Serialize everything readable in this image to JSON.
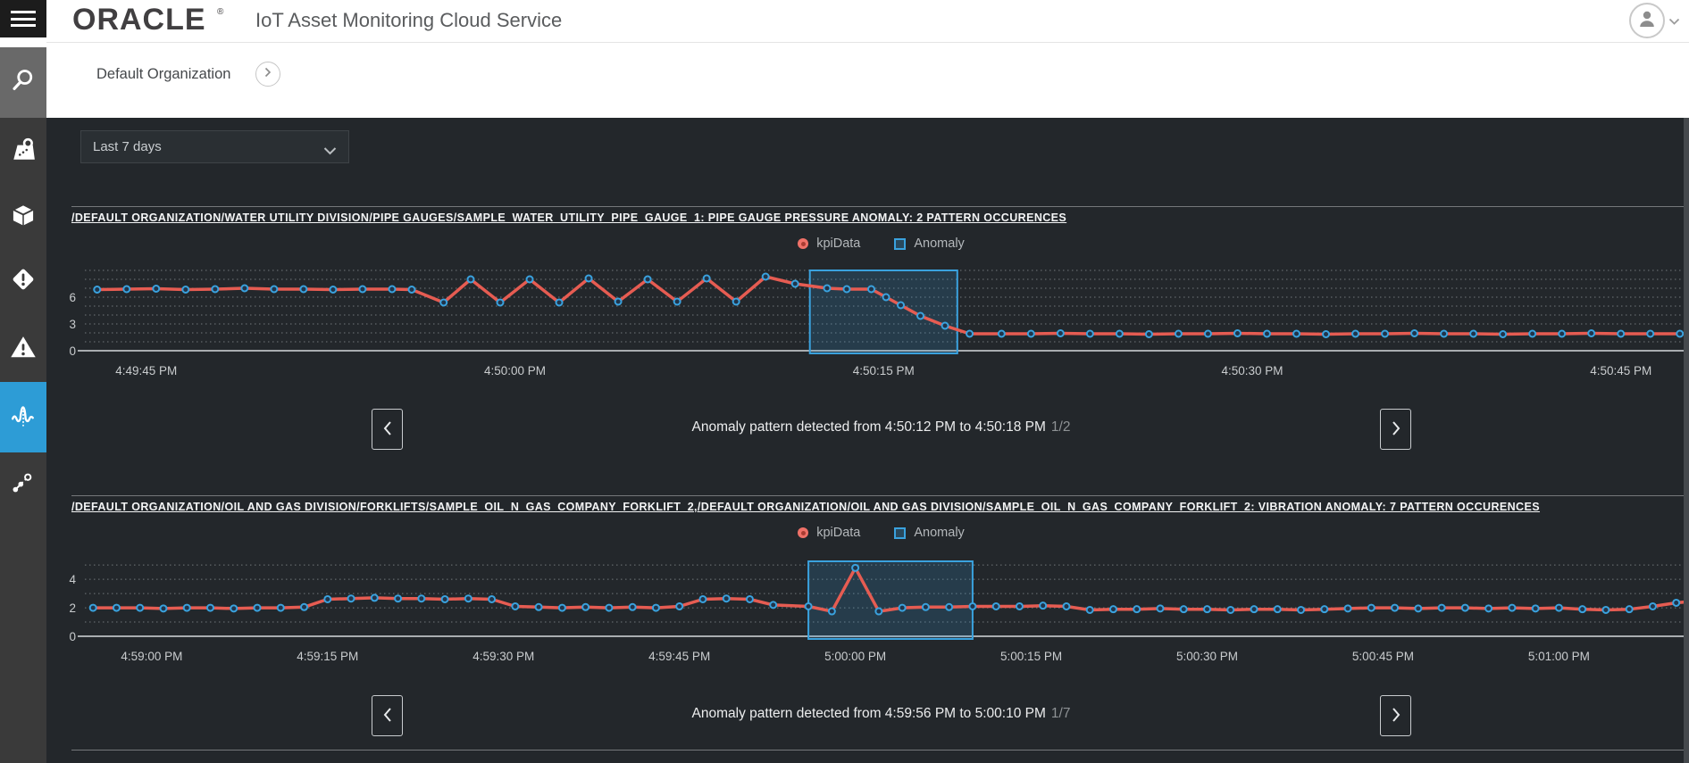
{
  "header": {
    "logo": "ORACLE",
    "logo_registered": "®",
    "app_title": "IoT Asset Monitoring Cloud Service"
  },
  "breadcrumb": {
    "organization": "Default Organization"
  },
  "filters": {
    "time_range": "Last 7 days"
  },
  "sidebar": {
    "icons": [
      "menu",
      "search",
      "map",
      "assets",
      "incidents",
      "alerts",
      "anomalies",
      "predictions"
    ],
    "active_item": "anomalies"
  },
  "sections": [
    {
      "title": "/DEFAULT ORGANIZATION/WATER UTILITY DIVISION/PIPE GAUGES/SAMPLE_WATER_UTILITY_PIPE_GAUGE_1: PIPE GAUGE PRESSURE ANOMALY: 2 PATTERN OCCURENCES",
      "legend_kpi": "kpiData",
      "legend_anomaly": "Anomaly",
      "nav_text": "Anomaly pattern detected from 4:50:12 PM to 4:50:18 PM",
      "nav_fraction": "1/2"
    },
    {
      "title": "/DEFAULT ORGANIZATION/OIL AND GAS DIVISION/FORKLIFTS/SAMPLE_OIL_N_GAS_COMPANY_FORKLIFT_2,/DEFAULT ORGANIZATION/OIL AND GAS DIVISION/SAMPLE_OIL_N_GAS_COMPANY_FORKLIFT_2: VIBRATION ANOMALY: 7 PATTERN OCCURENCES",
      "legend_kpi": "kpiData",
      "legend_anomaly": "Anomaly",
      "nav_text": "Anomaly pattern detected from 4:59:56 PM to 5:00:10 PM",
      "nav_fraction": "1/7"
    }
  ],
  "colors": {
    "accent_blue": "#3aa2de",
    "kpi_line": "#e65c52",
    "sidebar_active": "#2d9cd6",
    "anomaly_fill": "rgba(58,162,222,0.18)"
  },
  "chart_data": [
    {
      "type": "line",
      "title": "PIPE GAUGE PRESSURE ANOMALY",
      "legend": [
        "kpiData",
        "Anomaly"
      ],
      "legend_position": "top-center",
      "grid": true,
      "xlim_seconds_of_day": [
        60582.5,
        60647.3
      ],
      "ylim": [
        0,
        9.7
      ],
      "y_ticks": [
        0,
        3,
        6
      ],
      "x_ticks": [
        {
          "t": 60585,
          "label": "4:49:45 PM"
        },
        {
          "t": 60600,
          "label": "4:50:00 PM"
        },
        {
          "t": 60615,
          "label": "4:50:15 PM"
        },
        {
          "t": 60630,
          "label": "4:50:30 PM"
        },
        {
          "t": 60645,
          "label": "4:50:45 PM"
        }
      ],
      "anomaly_window": {
        "t0": 60612,
        "t1": 60618,
        "from_label": "4:50:12 PM",
        "to_label": "4:50:18 PM"
      },
      "series": [
        {
          "name": "kpiData",
          "points": [
            [
              60583,
              6.85
            ],
            [
              60584.2,
              6.9
            ],
            [
              60585.4,
              6.95
            ],
            [
              60586.6,
              6.85
            ],
            [
              60587.8,
              6.9
            ],
            [
              60589,
              7
            ],
            [
              60590.2,
              6.9
            ],
            [
              60591.4,
              6.9
            ],
            [
              60592.6,
              6.85
            ],
            [
              60593.8,
              6.9
            ],
            [
              60595,
              6.9
            ],
            [
              60595.8,
              6.85
            ],
            [
              60597.1,
              5.4
            ],
            [
              60598.2,
              8
            ],
            [
              60599.4,
              5.4
            ],
            [
              60600.6,
              8
            ],
            [
              60601.8,
              5.4
            ],
            [
              60603,
              8.1
            ],
            [
              60604.2,
              5.5
            ],
            [
              60605.4,
              8
            ],
            [
              60606.6,
              5.5
            ],
            [
              60607.8,
              8.1
            ],
            [
              60609,
              5.5
            ],
            [
              60610.2,
              8.3
            ],
            [
              60611.4,
              7.5
            ],
            [
              60612.7,
              7
            ],
            [
              60613.5,
              6.9
            ],
            [
              60614.5,
              6.9
            ],
            [
              60615.1,
              6
            ],
            [
              60615.7,
              5.1
            ],
            [
              60616.5,
              3.9
            ],
            [
              60617.5,
              2.8
            ],
            [
              60618.5,
              1.9
            ],
            [
              60619.8,
              1.9
            ],
            [
              60621,
              1.9
            ],
            [
              60622.2,
              1.95
            ],
            [
              60623.4,
              1.9
            ],
            [
              60624.6,
              1.9
            ],
            [
              60625.8,
              1.85
            ],
            [
              60627,
              1.9
            ],
            [
              60628.2,
              1.9
            ],
            [
              60629.4,
              1.95
            ],
            [
              60630.6,
              1.9
            ],
            [
              60631.8,
              1.9
            ],
            [
              60633,
              1.85
            ],
            [
              60634.2,
              1.9
            ],
            [
              60635.4,
              1.9
            ],
            [
              60636.6,
              1.95
            ],
            [
              60637.8,
              1.9
            ],
            [
              60639,
              1.9
            ],
            [
              60640.2,
              1.85
            ],
            [
              60641.4,
              1.9
            ],
            [
              60642.6,
              1.9
            ],
            [
              60643.8,
              1.95
            ],
            [
              60645,
              1.9
            ],
            [
              60646.2,
              1.9
            ],
            [
              60647.4,
              1.9
            ],
            [
              60648.8,
              1.9
            ]
          ]
        }
      ]
    },
    {
      "type": "line",
      "title": "VIBRATION ANOMALY",
      "legend": [
        "kpiData",
        "Anomaly"
      ],
      "legend_position": "top-center",
      "grid": true,
      "xlim_seconds_of_day": [
        61134.3,
        61270.1
      ],
      "ylim": [
        0,
        5.7
      ],
      "y_ticks": [
        0,
        2,
        4
      ],
      "x_ticks": [
        {
          "t": 61140,
          "label": "4:59:00 PM"
        },
        {
          "t": 61155,
          "label": "4:59:15 PM"
        },
        {
          "t": 61170,
          "label": "4:59:30 PM"
        },
        {
          "t": 61185,
          "label": "4:59:45 PM"
        },
        {
          "t": 61200,
          "label": "5:00:00 PM"
        },
        {
          "t": 61215,
          "label": "5:00:15 PM"
        },
        {
          "t": 61230,
          "label": "5:00:30 PM"
        },
        {
          "t": 61245,
          "label": "5:00:45 PM"
        },
        {
          "t": 61260,
          "label": "5:01:00 PM"
        }
      ],
      "anomaly_window": {
        "t0": 61196,
        "t1": 61210,
        "from_label": "4:59:56 PM",
        "to_label": "5:00:10 PM"
      },
      "series": [
        {
          "name": "kpiData",
          "points": [
            [
              61135,
              2
            ],
            [
              61137,
              2
            ],
            [
              61139,
              2
            ],
            [
              61141,
              1.95
            ],
            [
              61143,
              2
            ],
            [
              61145,
              2
            ],
            [
              61147,
              1.95
            ],
            [
              61149,
              2
            ],
            [
              61151,
              2
            ],
            [
              61153,
              2.05
            ],
            [
              61155,
              2.6
            ],
            [
              61157,
              2.65
            ],
            [
              61159,
              2.7
            ],
            [
              61161,
              2.65
            ],
            [
              61163,
              2.65
            ],
            [
              61165,
              2.6
            ],
            [
              61167,
              2.65
            ],
            [
              61169,
              2.6
            ],
            [
              61171,
              2.1
            ],
            [
              61173,
              2.05
            ],
            [
              61175,
              2
            ],
            [
              61177,
              2.05
            ],
            [
              61179,
              2
            ],
            [
              61181,
              2.05
            ],
            [
              61183,
              2
            ],
            [
              61185,
              2.1
            ],
            [
              61187,
              2.6
            ],
            [
              61189,
              2.65
            ],
            [
              61191,
              2.6
            ],
            [
              61193,
              2.2
            ],
            [
              61196,
              2.1
            ],
            [
              61198,
              1.75
            ],
            [
              61200,
              4.8
            ],
            [
              61202,
              1.75
            ],
            [
              61204,
              2
            ],
            [
              61206,
              2.05
            ],
            [
              61208,
              2.05
            ],
            [
              61210,
              2.1
            ],
            [
              61212,
              2.1
            ],
            [
              61214,
              2.1
            ],
            [
              61216,
              2.15
            ],
            [
              61218,
              2.1
            ],
            [
              61220,
              1.85
            ],
            [
              61222,
              1.9
            ],
            [
              61224,
              1.9
            ],
            [
              61226,
              1.95
            ],
            [
              61228,
              1.9
            ],
            [
              61230,
              1.9
            ],
            [
              61232,
              1.85
            ],
            [
              61234,
              1.9
            ],
            [
              61236,
              1.9
            ],
            [
              61238,
              1.85
            ],
            [
              61240,
              1.9
            ],
            [
              61242,
              1.95
            ],
            [
              61244,
              2
            ],
            [
              61246,
              2
            ],
            [
              61248,
              1.95
            ],
            [
              61250,
              2
            ],
            [
              61252,
              2
            ],
            [
              61254,
              1.95
            ],
            [
              61256,
              2
            ],
            [
              61258,
              1.95
            ],
            [
              61260,
              2
            ],
            [
              61262,
              1.9
            ],
            [
              61264,
              1.85
            ],
            [
              61266,
              1.9
            ],
            [
              61268,
              2.1
            ],
            [
              61270,
              2.35
            ],
            [
              61272,
              2.5
            ]
          ]
        }
      ]
    }
  ]
}
